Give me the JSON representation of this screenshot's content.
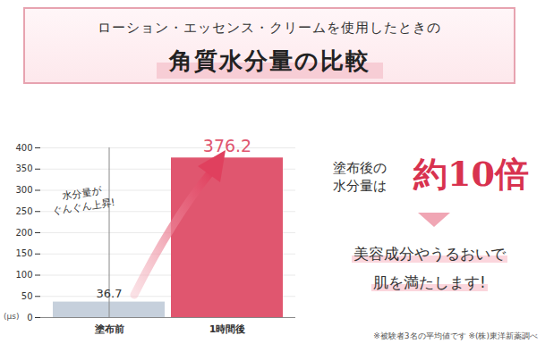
{
  "chart_data": {
    "type": "bar",
    "title": "角質水分量の比較",
    "subtitle": "ローション・エッセンス・クリームを使用したときの",
    "categories": [
      "塗布前",
      "1時間後"
    ],
    "values": [
      36.7,
      376.2
    ],
    "colors": [
      "#c6d0dc",
      "#e0566f"
    ],
    "ylim": [
      0,
      400
    ],
    "yticks": [
      0,
      50,
      100,
      150,
      200,
      250,
      300,
      350,
      400
    ],
    "y_label": "(μs)",
    "grid": true,
    "data_labels": true,
    "annotation": [
      "水分量が",
      "ぐんぐん上昇!"
    ],
    "callout": {
      "lead": [
        "塗布後の",
        "水分量は"
      ],
      "highlight": "約10倍",
      "message": [
        "美容成分やうるおいで",
        "肌を満たします!"
      ]
    },
    "footnote": "※被験者3名の平均値です ※(株)東洋新薬調べ"
  }
}
